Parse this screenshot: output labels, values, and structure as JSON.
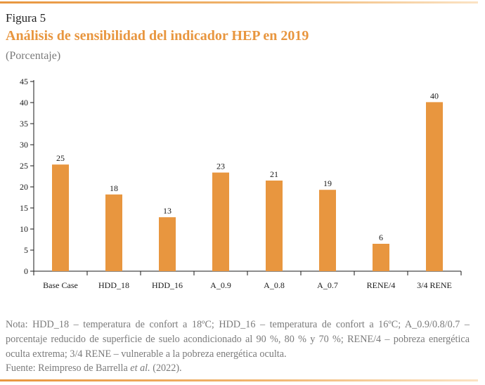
{
  "figure": {
    "label": "Figura 5",
    "title": "Análisis de sensibilidad del indicador HEP en 2019",
    "subtitle": "(Porcentaje)"
  },
  "chart_data": {
    "type": "bar",
    "categories": [
      "Base Case",
      "HDD_18",
      "HDD_16",
      "A_0.9",
      "A_0.8",
      "A_0.7",
      "RENE/4",
      "3/4 RENE"
    ],
    "values": [
      25,
      18,
      13,
      23,
      21,
      19,
      6,
      40
    ],
    "data_labels": [
      "25",
      "18",
      "13",
      "23",
      "21",
      "19",
      "6",
      "40"
    ],
    "bar_values": [
      25.3,
      18.2,
      12.8,
      23.4,
      21.5,
      19.3,
      6.5,
      40.1
    ],
    "ylim": [
      0,
      45
    ],
    "yticks": [
      0,
      5,
      10,
      15,
      20,
      25,
      30,
      35,
      40,
      45
    ],
    "ytick_labels": [
      "0",
      "5",
      "10",
      "15",
      "20",
      "25",
      "30",
      "35",
      "40",
      "45"
    ],
    "xlabel": "",
    "ylabel": "",
    "grid": false,
    "bar_color": "#e8963f"
  },
  "notes": {
    "text": "Nota: HDD_18 – temperatura de confort a 18ºC; HDD_16 – temperatura de confort a 16ºC; A_0.9/0.8/0.7 – porcentaje reducido de superficie de suelo acondicionado al 90 %, 80 % y 70 %; RENE/4 – pobreza energética oculta extrema; 3/4 RENE – vulnerable a la pobreza energética oculta.",
    "source_prefix": "Fuente: Reimpreso de Barrella ",
    "source_italic": "et al.",
    "source_suffix": " (2022)."
  },
  "colors": {
    "accent": "#e8963f",
    "muted_text": "#7a7a7a"
  }
}
